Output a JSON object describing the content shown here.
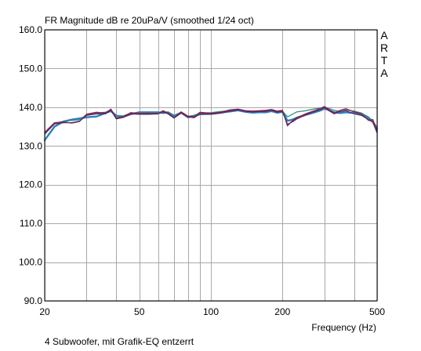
{
  "chart_data": {
    "type": "line",
    "title": "FR Magnitude dB re 20uPa/V (smoothed 1/24 oct)",
    "xlabel": "Frequency (Hz)",
    "ylabel": "",
    "x_scale": "log",
    "xlim": [
      20,
      500
    ],
    "ylim": [
      90,
      160
    ],
    "grid": true,
    "y_ticks": [
      160,
      150,
      140,
      130,
      120,
      110,
      100,
      90
    ],
    "y_tick_labels": [
      "160.0",
      "150.0",
      "140.0",
      "130.0",
      "120.0",
      "110.0",
      "100.0",
      "90.0"
    ],
    "x_tick_labels": [
      {
        "x": 20,
        "label": "20"
      },
      {
        "x": 50,
        "label": "50"
      },
      {
        "x": 100,
        "label": "100"
      },
      {
        "x": 200,
        "label": "200"
      },
      {
        "x": 500,
        "label": "500"
      }
    ],
    "x_grid": [
      20,
      30,
      40,
      50,
      60,
      70,
      80,
      90,
      100,
      200,
      300,
      400,
      500
    ],
    "watermark": [
      "A",
      "R",
      "T",
      "A"
    ],
    "series": [
      {
        "color": "#2a7fbf",
        "x": [
          20,
          22,
          24,
          26,
          28,
          30,
          33,
          36,
          38,
          40,
          43,
          46,
          50,
          55,
          60,
          63,
          66,
          70,
          75,
          80,
          85,
          90,
          100,
          110,
          120,
          130,
          140,
          150,
          160,
          170,
          180,
          190,
          200,
          210,
          220,
          230,
          250,
          270,
          290,
          300,
          310,
          330,
          350,
          370,
          400,
          430,
          460,
          480,
          500
        ],
        "y": [
          131.5,
          135.0,
          136.3,
          136.8,
          137.1,
          137.4,
          137.6,
          138.5,
          139.0,
          137.8,
          137.6,
          138.2,
          138.7,
          138.7,
          138.7,
          138.5,
          138.7,
          137.8,
          138.6,
          137.4,
          137.8,
          138.2,
          138.3,
          138.6,
          138.9,
          139.2,
          138.8,
          138.6,
          138.7,
          138.7,
          139.0,
          138.6,
          138.8,
          136.5,
          136.8,
          137.3,
          138.0,
          138.6,
          139.2,
          139.6,
          139.4,
          138.7,
          138.5,
          138.7,
          138.5,
          138.0,
          137.3,
          136.3,
          134.5
        ]
      },
      {
        "color": "#2f8f8a",
        "x": [
          20,
          22,
          24,
          26,
          28,
          30,
          33,
          36,
          38,
          40,
          43,
          46,
          50,
          55,
          60,
          63,
          66,
          70,
          75,
          80,
          85,
          90,
          100,
          110,
          120,
          130,
          140,
          150,
          160,
          170,
          180,
          190,
          200,
          210,
          220,
          230,
          250,
          270,
          290,
          300,
          310,
          330,
          350,
          370,
          400,
          430,
          460,
          480,
          500
        ],
        "y": [
          133.0,
          135.8,
          136.4,
          136.6,
          136.8,
          138.0,
          138.5,
          138.7,
          139.3,
          137.5,
          137.8,
          138.5,
          138.5,
          138.5,
          138.6,
          138.9,
          138.6,
          137.6,
          138.6,
          137.6,
          137.9,
          138.5,
          138.6,
          138.9,
          139.1,
          139.4,
          139.0,
          138.8,
          138.9,
          139.0,
          139.3,
          138.8,
          139.0,
          137.5,
          138.2,
          138.8,
          139.1,
          139.5,
          139.8,
          140.0,
          139.8,
          139.2,
          138.9,
          139.3,
          139.0,
          138.5,
          137.5,
          136.2,
          134.0
        ]
      },
      {
        "color": "#8a1f3c",
        "x": [
          20,
          22,
          24,
          26,
          28,
          30,
          33,
          36,
          38,
          40,
          43,
          46,
          50,
          55,
          60,
          63,
          66,
          70,
          75,
          80,
          85,
          90,
          100,
          110,
          120,
          130,
          140,
          150,
          160,
          170,
          180,
          190,
          200,
          210,
          220,
          230,
          250,
          270,
          290,
          300,
          310,
          330,
          350,
          370,
          400,
          430,
          460,
          480,
          500
        ],
        "y": [
          133.5,
          136.0,
          136.2,
          135.9,
          136.3,
          138.2,
          138.7,
          138.5,
          139.5,
          137.2,
          137.6,
          138.6,
          138.4,
          138.4,
          138.4,
          139.1,
          138.5,
          137.3,
          138.8,
          137.7,
          137.5,
          138.7,
          138.4,
          138.7,
          139.3,
          139.5,
          139.1,
          139.0,
          139.1,
          139.2,
          139.4,
          139.0,
          139.2,
          135.2,
          136.5,
          137.3,
          138.3,
          139.0,
          139.7,
          140.2,
          139.6,
          138.5,
          139.2,
          139.6,
          138.8,
          138.3,
          136.6,
          136.8,
          133.8
        ]
      },
      {
        "color": "#5a2a6e",
        "x": [
          20,
          22,
          24,
          26,
          28,
          30,
          33,
          36,
          38,
          40,
          43,
          46,
          50,
          55,
          60,
          63,
          66,
          70,
          75,
          80,
          85,
          90,
          100,
          110,
          120,
          130,
          140,
          150,
          160,
          170,
          180,
          190,
          200,
          210,
          220,
          230,
          250,
          270,
          290,
          300,
          310,
          330,
          350,
          370,
          400,
          430,
          460,
          480,
          500
        ],
        "y": [
          133.2,
          135.7,
          136.0,
          136.0,
          136.4,
          137.9,
          138.3,
          138.3,
          139.2,
          137.0,
          137.4,
          138.3,
          138.2,
          138.2,
          138.3,
          138.8,
          138.3,
          137.2,
          138.5,
          137.5,
          137.3,
          138.3,
          138.2,
          138.5,
          139.0,
          139.3,
          138.9,
          138.8,
          138.9,
          138.9,
          139.2,
          138.7,
          138.9,
          135.6,
          136.2,
          137.0,
          138.0,
          138.8,
          139.4,
          139.9,
          139.3,
          138.3,
          138.9,
          139.1,
          138.3,
          137.9,
          136.8,
          136.1,
          133.4
        ]
      }
    ]
  },
  "caption": "4 Subwoofer, mit Grafik-EQ entzerrt"
}
